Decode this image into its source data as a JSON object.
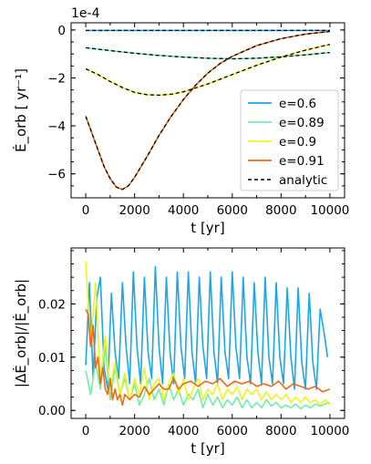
{
  "chart_data": [
    {
      "type": "line",
      "multiplier": "1e-4",
      "xlabel": "t [yr]",
      "ylabel": "Ė_orb [ yr⁻¹]",
      "xlim": [
        -600,
        10600
      ],
      "ylim": [
        -7.0,
        0.3
      ],
      "xticks": [
        0,
        2000,
        4000,
        6000,
        8000,
        10000
      ],
      "yticks": [
        0,
        -2,
        -4,
        -6
      ],
      "legend": "center-right",
      "grid": false,
      "series": [
        {
          "name": "e=0.6",
          "color": "#1aa8e8",
          "x": [
            0,
            2000,
            4000,
            6000,
            8000,
            10000
          ],
          "y": [
            -0.02,
            -0.02,
            -0.02,
            -0.02,
            -0.02,
            -0.02
          ]
        },
        {
          "name": "e=0.89",
          "color": "#6ff0a6",
          "x": [
            0,
            1000,
            2000,
            3000,
            4000,
            5000,
            6000,
            7000,
            8000,
            9000,
            10000
          ],
          "y": [
            -0.74,
            -0.86,
            -0.97,
            -1.06,
            -1.13,
            -1.18,
            -1.2,
            -1.18,
            -1.12,
            -1.04,
            -0.94
          ]
        },
        {
          "name": "e=0.9",
          "color": "#f2f21c",
          "x": [
            0,
            500,
            1000,
            1500,
            2000,
            2500,
            3000,
            3500,
            4000,
            5000,
            6000,
            7000,
            8000,
            9000,
            10000
          ],
          "y": [
            -1.62,
            -1.86,
            -2.15,
            -2.4,
            -2.6,
            -2.7,
            -2.72,
            -2.68,
            -2.58,
            -2.25,
            -1.86,
            -1.47,
            -1.13,
            -0.84,
            -0.6
          ]
        },
        {
          "name": "e=0.91",
          "color": "#ef6a12",
          "x": [
            0,
            250,
            500,
            750,
            1000,
            1250,
            1500,
            1750,
            2000,
            2500,
            3000,
            3500,
            4000,
            4500,
            5000,
            5500,
            6000,
            7000,
            8000,
            9000,
            10000
          ],
          "y": [
            -3.6,
            -4.3,
            -5.0,
            -5.7,
            -6.2,
            -6.55,
            -6.65,
            -6.5,
            -6.15,
            -5.3,
            -4.4,
            -3.6,
            -2.9,
            -2.3,
            -1.8,
            -1.4,
            -1.1,
            -0.65,
            -0.36,
            -0.17,
            -0.06
          ]
        },
        {
          "name": "analytic",
          "color": "#000000",
          "dashed": true,
          "overlay": "all"
        }
      ]
    },
    {
      "type": "line",
      "xlabel": "t [yr]",
      "ylabel": "|ΔĖ_orb|/|Ė_orb|",
      "xlim": [
        -600,
        10600
      ],
      "ylim": [
        -0.0015,
        0.0305
      ],
      "xticks": [
        0,
        2000,
        4000,
        6000,
        8000,
        10000
      ],
      "yticks": [
        0.0,
        0.01,
        0.02
      ],
      "ytick_labels": [
        "0.00",
        "0.01",
        "0.02"
      ],
      "grid": false,
      "series": [
        {
          "name": "e=0.6",
          "color": "#1aa8e8",
          "x": [
            0,
            150,
            300,
            450,
            600,
            750,
            900,
            1050,
            1200,
            1350,
            1500,
            1650,
            1800,
            1950,
            2100,
            2250,
            2400,
            2550,
            2700,
            2850,
            3000,
            3150,
            3300,
            3450,
            3600,
            3750,
            3900,
            4050,
            4200,
            4350,
            4500,
            4650,
            4800,
            4950,
            5100,
            5250,
            5400,
            5550,
            5700,
            5850,
            6000,
            6150,
            6300,
            6450,
            6600,
            6750,
            6900,
            7050,
            7200,
            7350,
            7500,
            7650,
            7800,
            7950,
            8100,
            8250,
            8400,
            8550,
            8700,
            8850,
            9000,
            9150,
            9300,
            9450,
            9600,
            9750,
            9900
          ],
          "y": [
            0.0085,
            0.024,
            0.006,
            0.021,
            0.025,
            0.008,
            0.004,
            0.022,
            0.011,
            0.006,
            0.024,
            0.012,
            0.005,
            0.026,
            0.012,
            0.005,
            0.025,
            0.011,
            0.006,
            0.027,
            0.012,
            0.005,
            0.025,
            0.011,
            0.005,
            0.026,
            0.012,
            0.006,
            0.026,
            0.011,
            0.005,
            0.025,
            0.012,
            0.006,
            0.026,
            0.011,
            0.005,
            0.025,
            0.011,
            0.006,
            0.026,
            0.012,
            0.006,
            0.025,
            0.01,
            0.005,
            0.024,
            0.011,
            0.005,
            0.025,
            0.01,
            0.005,
            0.024,
            0.01,
            0.005,
            0.023,
            0.01,
            0.004,
            0.023,
            0.009,
            0.004,
            0.022,
            0.009,
            0.004,
            0.019,
            0.015,
            0.01
          ]
        },
        {
          "name": "e=0.89",
          "color": "#6ff0a6",
          "x": [
            0,
            200,
            400,
            600,
            800,
            1000,
            1200,
            1400,
            1600,
            1800,
            2000,
            2200,
            2400,
            2600,
            2800,
            3000,
            3200,
            3400,
            3600,
            3800,
            4000,
            4200,
            4400,
            4600,
            4800,
            5000,
            5200,
            5400,
            5600,
            5800,
            6000,
            6200,
            6400,
            6600,
            6800,
            7000,
            7200,
            7400,
            7600,
            7800,
            8000,
            8200,
            8400,
            8600,
            8800,
            9000,
            9200,
            9400,
            9600,
            9800,
            10000
          ],
          "y": [
            0.0075,
            0.003,
            0.009,
            0.004,
            0.012,
            0.002,
            0.008,
            0.003,
            0.006,
            0.002,
            0.005,
            0.001,
            0.003,
            0.006,
            0.002,
            0.004,
            0.001,
            0.005,
            0.002,
            0.004,
            0.001,
            0.003,
            0.002,
            0.004,
            0.0005,
            0.003,
            0.001,
            0.0025,
            0.0005,
            0.002,
            0.001,
            0.0025,
            0.0005,
            0.002,
            0.0005,
            0.0015,
            0.0005,
            0.002,
            0.0008,
            0.0015,
            0.0005,
            0.001,
            0.0005,
            0.0012,
            0.0003,
            0.001,
            0.0005,
            0.0012,
            0.0008,
            0.0012,
            0.0015
          ]
        },
        {
          "name": "e=0.9",
          "color": "#f2f21c",
          "x": [
            0,
            200,
            400,
            600,
            800,
            1000,
            1200,
            1400,
            1600,
            1800,
            2000,
            2200,
            2400,
            2600,
            2800,
            3000,
            3200,
            3400,
            3600,
            3800,
            4000,
            4200,
            4400,
            4600,
            4800,
            5000,
            5200,
            5400,
            5600,
            5800,
            6000,
            6200,
            6400,
            6600,
            6800,
            7000,
            7200,
            7400,
            7600,
            7800,
            8000,
            8200,
            8400,
            8600,
            8800,
            9000,
            9200,
            9400,
            9600,
            9800,
            10000
          ],
          "y": [
            0.028,
            0.012,
            0.024,
            0.006,
            0.014,
            0.004,
            0.009,
            0.003,
            0.007,
            0.002,
            0.006,
            0.003,
            0.008,
            0.002,
            0.005,
            0.006,
            0.002,
            0.005,
            0.007,
            0.003,
            0.006,
            0.002,
            0.004,
            0.006,
            0.002,
            0.004,
            0.003,
            0.005,
            0.002,
            0.004,
            0.003,
            0.0045,
            0.002,
            0.004,
            0.003,
            0.004,
            0.002,
            0.0035,
            0.002,
            0.003,
            0.002,
            0.003,
            0.0015,
            0.0025,
            0.0015,
            0.0025,
            0.0015,
            0.002,
            0.001,
            0.002,
            0.001
          ]
        },
        {
          "name": "e=0.91",
          "color": "#ef6a12",
          "x": [
            0,
            100,
            200,
            300,
            400,
            500,
            600,
            700,
            800,
            900,
            1000,
            1100,
            1200,
            1300,
            1400,
            1500,
            1600,
            1800,
            2000,
            2200,
            2400,
            2600,
            2800,
            3000,
            3200,
            3400,
            3600,
            3800,
            4000,
            4300,
            4600,
            4900,
            5200,
            5500,
            5800,
            6100,
            6400,
            6700,
            7000,
            7300,
            7600,
            7900,
            8200,
            8500,
            8800,
            9100,
            9400,
            9700,
            10000
          ],
          "y": [
            0.019,
            0.018,
            0.012,
            0.016,
            0.008,
            0.01,
            0.005,
            0.008,
            0.004,
            0.003,
            0.006,
            0.002,
            0.004,
            0.002,
            0.003,
            0.001,
            0.003,
            0.002,
            0.003,
            0.0025,
            0.0045,
            0.003,
            0.004,
            0.005,
            0.004,
            0.004,
            0.006,
            0.004,
            0.005,
            0.0055,
            0.0045,
            0.0055,
            0.005,
            0.006,
            0.0045,
            0.0055,
            0.005,
            0.0055,
            0.0045,
            0.005,
            0.0045,
            0.0055,
            0.004,
            0.005,
            0.0045,
            0.004,
            0.0045,
            0.0035,
            0.004
          ]
        }
      ]
    }
  ]
}
